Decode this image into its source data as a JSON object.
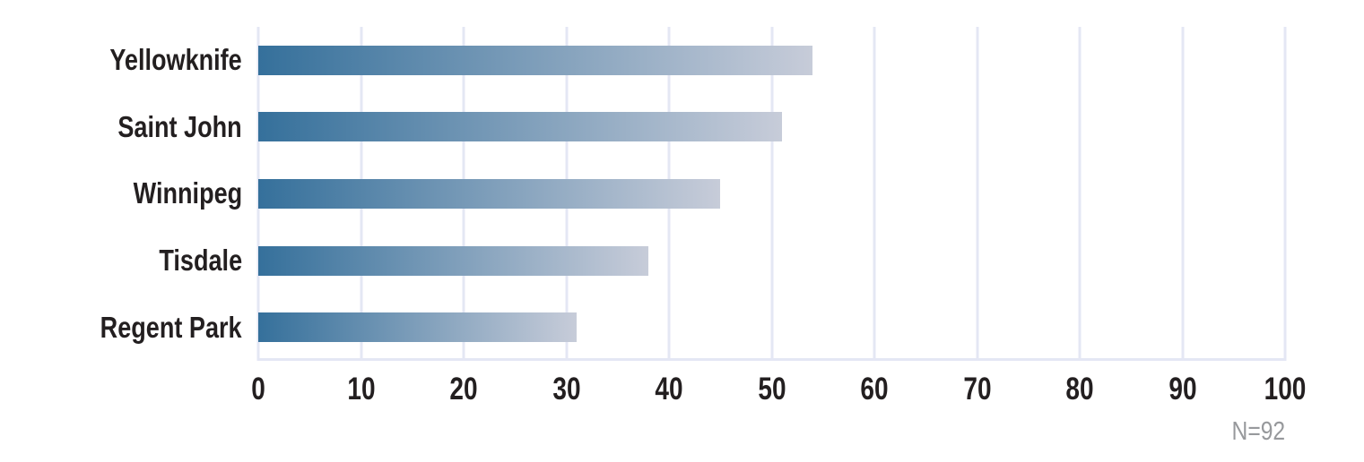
{
  "chart_data": {
    "type": "bar",
    "orientation": "horizontal",
    "title": "",
    "xlabel": "",
    "ylabel": "",
    "categories": [
      "Yellowknife",
      "Saint John",
      "Winnipeg",
      "Tisdale",
      "Regent Park"
    ],
    "values": [
      54,
      51,
      45,
      38,
      31
    ],
    "xlim": [
      0,
      100
    ],
    "xticks": [
      0,
      10,
      20,
      30,
      40,
      50,
      60,
      70,
      80,
      90,
      100
    ],
    "grid": true,
    "legend": false,
    "annotation": "N=92",
    "colors": {
      "bar_gradient_start": "#35709b",
      "bar_gradient_end": "#c7ccd9",
      "gridline": "#e4e7f4",
      "tick_label": "#231f20",
      "category_label": "#231f20",
      "annotation": "#97999c",
      "background": "#ffffff"
    }
  }
}
